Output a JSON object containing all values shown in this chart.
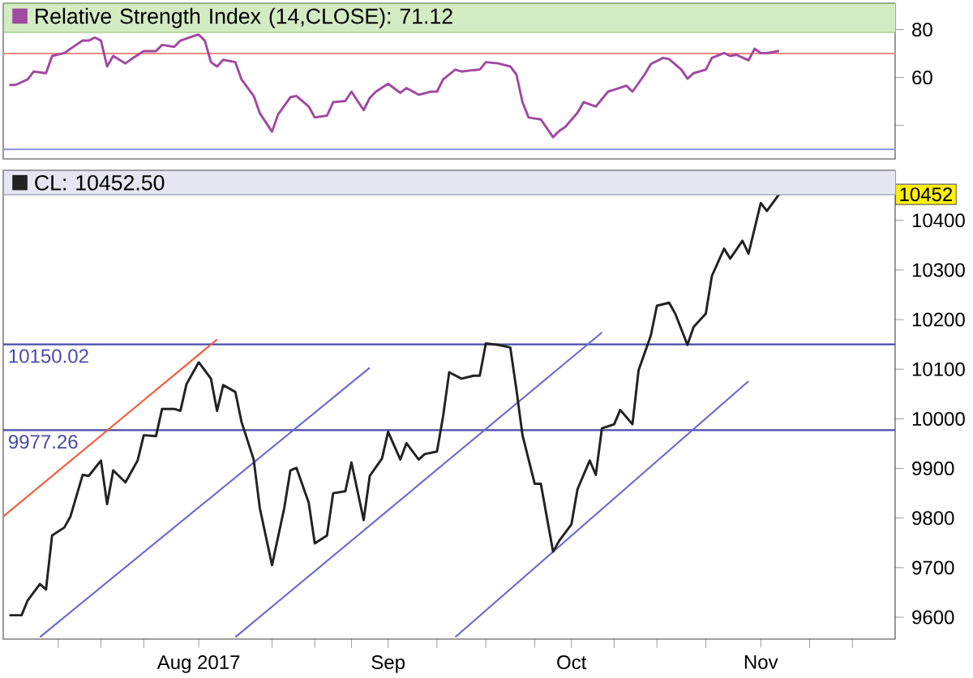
{
  "chart_data": [
    {
      "type": "line",
      "legend": "top left",
      "tick_labels": "y",
      "xlim": [
        "2017-06-30",
        "2017-11-23"
      ],
      "ylim": [
        26,
        91
      ],
      "yticks": [
        {
          "value": 40,
          "label": null
        },
        60,
        80
      ],
      "ref_lines": [
        {
          "axis": "y",
          "value": 70,
          "color": "#f08888"
        },
        {
          "axis": "y",
          "value": 30,
          "color": "#9a9ae0"
        }
      ],
      "series": [
        {
          "name": "Relative Strength Index (14,CLOSE): 71.12",
          "color": "#a04aa0",
          "x": [
            "2017-07-01",
            "2017-07-02",
            "2017-07-04",
            "2017-07-05",
            "2017-07-07",
            "2017-07-08",
            "2017-07-10",
            "2017-07-11",
            "2017-07-13",
            "2017-07-14",
            "2017-07-15",
            "2017-07-16",
            "2017-07-17",
            "2017-07-18",
            "2017-07-20",
            "2017-07-21",
            "2017-07-23",
            "2017-07-25",
            "2017-07-26",
            "2017-07-28",
            "2017-07-29",
            "2017-07-31",
            "2017-08-01",
            "2017-08-02",
            "2017-08-03",
            "2017-08-04",
            "2017-08-05",
            "2017-08-07",
            "2017-08-08",
            "2017-08-10",
            "2017-08-11",
            "2017-08-13",
            "2017-08-14",
            "2017-08-16",
            "2017-08-17",
            "2017-08-19",
            "2017-08-20",
            "2017-08-22",
            "2017-08-23",
            "2017-08-25",
            "2017-08-26",
            "2017-08-28",
            "2017-08-29",
            "2017-08-30",
            "2017-09-01",
            "2017-09-03",
            "2017-09-04",
            "2017-09-06",
            "2017-09-08",
            "2017-09-09",
            "2017-09-10",
            "2017-09-12",
            "2017-09-13",
            "2017-09-15",
            "2017-09-16",
            "2017-09-17",
            "2017-09-19",
            "2017-09-21",
            "2017-09-22",
            "2017-09-23",
            "2017-09-24",
            "2017-09-26",
            "2017-09-28",
            "2017-09-29",
            "2017-09-30",
            "2017-10-02",
            "2017-10-03",
            "2017-10-05",
            "2017-10-07",
            "2017-10-08",
            "2017-10-10",
            "2017-10-11",
            "2017-10-13",
            "2017-10-14",
            "2017-10-16",
            "2017-10-17",
            "2017-10-19",
            "2017-10-20",
            "2017-10-21",
            "2017-10-23",
            "2017-10-24",
            "2017-10-26",
            "2017-10-27",
            "2017-10-28",
            "2017-10-30",
            "2017-10-31",
            "2017-11-01",
            "2017-11-02",
            "2017-11-04"
          ],
          "values": [
            56.9,
            56.9,
            59.2,
            62.5,
            61.8,
            69.0,
            70.2,
            72.0,
            75.4,
            75.4,
            76.7,
            75.4,
            64.6,
            69.0,
            65.9,
            67.7,
            71.0,
            71.0,
            73.6,
            72.8,
            75.4,
            77.2,
            77.9,
            75.4,
            66.4,
            64.6,
            67.4,
            66.4,
            59.2,
            52.3,
            45.1,
            37.4,
            44.6,
            51.8,
            52.3,
            47.9,
            43.3,
            44.1,
            49.7,
            50.2,
            54.1,
            46.4,
            51.5,
            54.1,
            57.4,
            53.6,
            55.6,
            52.8,
            54.1,
            54.1,
            59.2,
            63.3,
            62.5,
            63.1,
            63.3,
            66.4,
            65.9,
            64.6,
            61.3,
            49.7,
            43.3,
            42.5,
            35.1,
            37.7,
            39.4,
            45.3,
            49.7,
            47.9,
            54.1,
            54.9,
            56.6,
            54.1,
            61.3,
            65.6,
            68.2,
            67.7,
            63.3,
            59.5,
            61.8,
            63.3,
            68.2,
            70.2,
            69.0,
            69.5,
            67.2,
            72.0,
            70.2,
            70.2,
            71.12
          ]
        }
      ]
    },
    {
      "type": "line",
      "legend": "top left",
      "xlim": [
        "2017-06-30",
        "2017-11-23"
      ],
      "ylim": [
        9556,
        10501
      ],
      "xticks": [
        {
          "value": "2017-07-09",
          "label": null
        },
        {
          "value": "2017-07-16",
          "label": null
        },
        {
          "value": "2017-07-23",
          "label": null
        },
        {
          "value": "2017-08-01",
          "label": "Aug 2017"
        },
        {
          "value": "2017-08-13",
          "label": null
        },
        {
          "value": "2017-08-20",
          "label": null
        },
        {
          "value": "2017-08-26",
          "label": null
        },
        {
          "value": "2017-09-01",
          "label": "Sep"
        },
        {
          "value": "2017-09-09",
          "label": null
        },
        {
          "value": "2017-09-17",
          "label": null
        },
        {
          "value": "2017-09-25",
          "label": null
        },
        {
          "value": "2017-10-01",
          "label": "Oct"
        },
        {
          "value": "2017-10-08",
          "label": null
        },
        {
          "value": "2017-10-15",
          "label": null
        },
        {
          "value": "2017-10-23",
          "label": null
        },
        {
          "value": "2017-11-01",
          "label": "Nov"
        },
        {
          "value": "2017-11-09",
          "label": null
        },
        {
          "value": "2017-11-16",
          "label": null
        }
      ],
      "yticks": [
        9600,
        9700,
        9800,
        9900,
        10000,
        10100,
        10200,
        10300,
        10400
      ],
      "ref_lines": [
        {
          "axis": "y",
          "value": 10150.02,
          "label": "10150.02",
          "color": "#4a4aa8"
        },
        {
          "axis": "y",
          "value": 9977.26,
          "label": "9977.26",
          "color": "#4a4aa8"
        }
      ],
      "annotations": [
        {
          "text": "10452",
          "y": 10452.5
        }
      ],
      "series": [
        {
          "name": "CL: 10452.50",
          "color": "#222222",
          "x": [
            "2017-07-01",
            "2017-07-03",
            "2017-07-04",
            "2017-07-06",
            "2017-07-07",
            "2017-07-08",
            "2017-07-10",
            "2017-07-11",
            "2017-07-13",
            "2017-07-14",
            "2017-07-16",
            "2017-07-17",
            "2017-07-18",
            "2017-07-20",
            "2017-07-22",
            "2017-07-23",
            "2017-07-25",
            "2017-07-26",
            "2017-07-28",
            "2017-07-29",
            "2017-07-30",
            "2017-08-01",
            "2017-08-03",
            "2017-08-04",
            "2017-08-05",
            "2017-08-07",
            "2017-08-08",
            "2017-08-10",
            "2017-08-11",
            "2017-08-13",
            "2017-08-15",
            "2017-08-16",
            "2017-08-17",
            "2017-08-19",
            "2017-08-20",
            "2017-08-22",
            "2017-08-23",
            "2017-08-25",
            "2017-08-26",
            "2017-08-28",
            "2017-08-29",
            "2017-08-31",
            "2017-09-01",
            "2017-09-03",
            "2017-09-04",
            "2017-09-06",
            "2017-09-07",
            "2017-09-09",
            "2017-09-10",
            "2017-09-11",
            "2017-09-13",
            "2017-09-15",
            "2017-09-16",
            "2017-09-17",
            "2017-09-19",
            "2017-09-21",
            "2017-09-22",
            "2017-09-23",
            "2017-09-25",
            "2017-09-26",
            "2017-09-28",
            "2017-09-29",
            "2017-10-01",
            "2017-10-02",
            "2017-10-04",
            "2017-10-05",
            "2017-10-06",
            "2017-10-08",
            "2017-10-09",
            "2017-10-11",
            "2017-10-12",
            "2017-10-14",
            "2017-10-15",
            "2017-10-17",
            "2017-10-18",
            "2017-10-20",
            "2017-10-21",
            "2017-10-23",
            "2017-10-24",
            "2017-10-26",
            "2017-10-27",
            "2017-10-29",
            "2017-10-30",
            "2017-11-01",
            "2017-11-02",
            "2017-11-04"
          ],
          "values": [
            9604,
            9604,
            9634,
            9667,
            9656,
            9765,
            9781,
            9803,
            9887,
            9885,
            9916,
            9828,
            9896,
            9872,
            9916,
            9967,
            9965,
            10020,
            10020,
            10016,
            10070,
            10114,
            10081,
            10016,
            10068,
            10054,
            9994,
            9918,
            9820,
            9705,
            9820,
            9896,
            9901,
            9831,
            9749,
            9765,
            9850,
            9854,
            9912,
            9796,
            9885,
            9920,
            9974,
            9918,
            9951,
            9918,
            9929,
            9934,
            10005,
            10094,
            10081,
            10087,
            10087,
            10152,
            10149,
            10144,
            10059,
            9967,
            9869,
            9869,
            9732,
            9754,
            9787,
            9858,
            9916,
            9887,
            9981,
            9989,
            10018,
            9989,
            10098,
            10168,
            10228,
            10234,
            10212,
            10149,
            10185,
            10212,
            10288,
            10343,
            10323,
            10359,
            10333,
            10435,
            10419,
            10452.5
          ]
        },
        {
          "color": "#f06040",
          "x": [
            "2017-06-30",
            "2017-08-04"
          ],
          "values": [
            9803,
            10160
          ]
        },
        {
          "color": "#6a6ad0",
          "x": [
            "2017-07-06",
            "2017-08-29"
          ],
          "values": [
            9560,
            10103
          ]
        },
        {
          "color": "#6a6ad0",
          "x": [
            "2017-08-07",
            "2017-10-06"
          ],
          "values": [
            9560,
            10174
          ]
        },
        {
          "color": "#6a6ad0",
          "x": [
            "2017-09-12",
            "2017-10-30"
          ],
          "values": [
            9560,
            10076
          ]
        }
      ]
    }
  ]
}
